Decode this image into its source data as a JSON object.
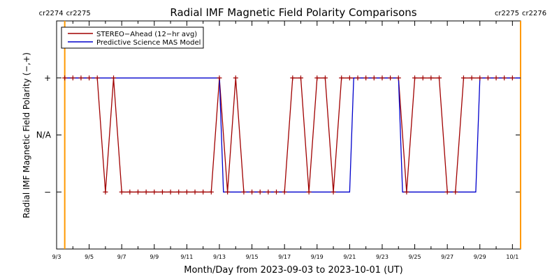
{
  "chart_data": {
    "type": "line",
    "title": "Radial IMF Magnetic Field Polarity Comparisons",
    "xlabel": "Month/Day from 2023-09-03 to 2023-10-01 (UT)",
    "ylabel": "Radial IMF Magnetic Field Polarity (−,+)",
    "x_unit": "days",
    "x_range": [
      "2023-09-03",
      "2023-10-01"
    ],
    "x_ticks": [
      "9/3",
      "9/5",
      "9/7",
      "9/9",
      "9/11",
      "9/13",
      "9/15",
      "9/17",
      "9/19",
      "9/21",
      "9/23",
      "9/25",
      "9/27",
      "9/29",
      "10/1"
    ],
    "x_tick_dates": [
      "2023-09-03",
      "2023-09-05",
      "2023-09-07",
      "2023-09-09",
      "2023-09-11",
      "2023-09-13",
      "2023-09-15",
      "2023-09-17",
      "2023-09-19",
      "2023-09-21",
      "2023-09-23",
      "2023-09-25",
      "2023-09-27",
      "2023-09-29",
      "2023-10-01"
    ],
    "y_ticks": [
      {
        "label": "+",
        "value": 1
      },
      {
        "label": "N/A",
        "value": 0
      },
      {
        "label": "−",
        "value": -1
      }
    ],
    "ylim": [
      -2,
      2
    ],
    "legend": {
      "position": "top-left",
      "entries": [
        {
          "label": "STEREO−Ahead (12−hr avg)",
          "color": "#a00000"
        },
        {
          "label": "Predictive Science MAS Model",
          "color": "#0000cc"
        }
      ]
    },
    "carrington_markers": [
      {
        "date": "2023-09-03T12:00",
        "left_label": "cr2274",
        "right_label": "cr2275",
        "color": "#ff9900"
      },
      {
        "date": "2023-10-01T12:00",
        "left_label": "cr2275",
        "right_label": "cr2276",
        "color": "#ff9900"
      }
    ],
    "series": [
      {
        "name": "STEREO−Ahead (12−hr avg)",
        "color": "#a00000",
        "marker": "+",
        "points": [
          [
            "2023-09-03T12:00",
            1
          ],
          [
            "2023-09-04T00:00",
            1
          ],
          [
            "2023-09-04T12:00",
            1
          ],
          [
            "2023-09-05T00:00",
            1
          ],
          [
            "2023-09-05T12:00",
            1
          ],
          [
            "2023-09-06T00:00",
            -1
          ],
          [
            "2023-09-06T12:00",
            1
          ],
          [
            "2023-09-07T00:00",
            -1
          ],
          [
            "2023-09-07T12:00",
            -1
          ],
          [
            "2023-09-08T00:00",
            -1
          ],
          [
            "2023-09-08T12:00",
            -1
          ],
          [
            "2023-09-09T00:00",
            -1
          ],
          [
            "2023-09-09T12:00",
            -1
          ],
          [
            "2023-09-10T00:00",
            -1
          ],
          [
            "2023-09-10T12:00",
            -1
          ],
          [
            "2023-09-11T00:00",
            -1
          ],
          [
            "2023-09-11T12:00",
            -1
          ],
          [
            "2023-09-12T00:00",
            -1
          ],
          [
            "2023-09-12T12:00",
            -1
          ],
          [
            "2023-09-13T00:00",
            1
          ],
          [
            "2023-09-13T12:00",
            -1
          ],
          [
            "2023-09-14T00:00",
            1
          ],
          [
            "2023-09-14T12:00",
            -1
          ],
          [
            "2023-09-15T00:00",
            -1
          ],
          [
            "2023-09-15T12:00",
            -1
          ],
          [
            "2023-09-16T00:00",
            -1
          ],
          [
            "2023-09-16T12:00",
            -1
          ],
          [
            "2023-09-17T00:00",
            -1
          ],
          [
            "2023-09-17T12:00",
            1
          ],
          [
            "2023-09-18T00:00",
            1
          ],
          [
            "2023-09-18T12:00",
            -1
          ],
          [
            "2023-09-19T00:00",
            1
          ],
          [
            "2023-09-19T12:00",
            1
          ],
          [
            "2023-09-20T00:00",
            -1
          ],
          [
            "2023-09-20T12:00",
            1
          ],
          [
            "2023-09-21T00:00",
            1
          ],
          [
            "2023-09-21T12:00",
            1
          ],
          [
            "2023-09-22T00:00",
            1
          ],
          [
            "2023-09-22T12:00",
            1
          ],
          [
            "2023-09-23T00:00",
            1
          ],
          [
            "2023-09-23T12:00",
            1
          ],
          [
            "2023-09-24T00:00",
            1
          ],
          [
            "2023-09-24T12:00",
            -1
          ],
          [
            "2023-09-25T00:00",
            1
          ],
          [
            "2023-09-25T12:00",
            1
          ],
          [
            "2023-09-26T00:00",
            1
          ],
          [
            "2023-09-26T12:00",
            1
          ],
          [
            "2023-09-27T00:00",
            -1
          ],
          [
            "2023-09-27T12:00",
            -1
          ],
          [
            "2023-09-28T00:00",
            1
          ],
          [
            "2023-09-28T12:00",
            1
          ],
          [
            "2023-09-29T00:00",
            1
          ],
          [
            "2023-09-29T12:00",
            1
          ],
          [
            "2023-09-30T00:00",
            1
          ],
          [
            "2023-09-30T12:00",
            1
          ],
          [
            "2023-10-01T00:00",
            1
          ]
        ]
      },
      {
        "name": "Predictive Science MAS Model",
        "color": "#0000cc",
        "marker": "none",
        "points": [
          [
            "2023-09-03T12:00",
            1
          ],
          [
            "2023-09-13T00:00",
            1
          ],
          [
            "2023-09-13T06:00",
            -1
          ],
          [
            "2023-09-21T00:00",
            -1
          ],
          [
            "2023-09-21T06:00",
            1
          ],
          [
            "2023-09-24T00:00",
            1
          ],
          [
            "2023-09-24T06:00",
            -1
          ],
          [
            "2023-09-28T18:00",
            -1
          ],
          [
            "2023-09-29T00:00",
            1
          ],
          [
            "2023-10-01T12:00",
            1
          ]
        ]
      }
    ]
  }
}
